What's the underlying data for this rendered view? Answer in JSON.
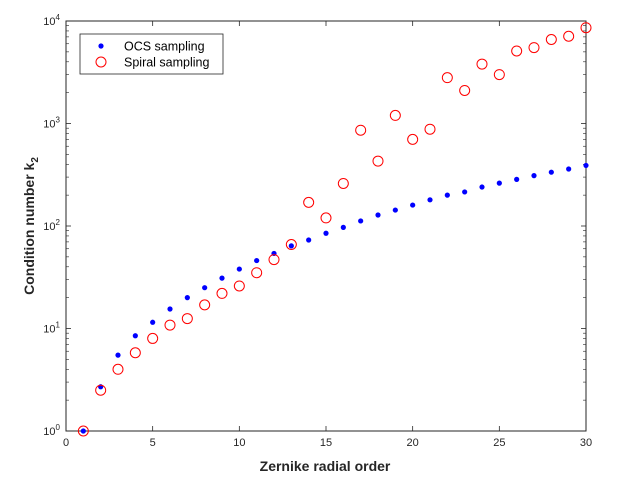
{
  "chart_data": {
    "type": "scatter",
    "xlabel": "Zernike radial order",
    "ylabel": "Condition number k",
    "ylabel_subscript": "2",
    "xlim": [
      0,
      30
    ],
    "ylim": [
      1,
      10000
    ],
    "yscale": "log",
    "xticks": [
      0,
      5,
      10,
      15,
      20,
      25,
      30
    ],
    "yticks": [
      {
        "value": 1,
        "base": "10",
        "exp": "0"
      },
      {
        "value": 10,
        "base": "10",
        "exp": "1"
      },
      {
        "value": 100,
        "base": "10",
        "exp": "2"
      },
      {
        "value": 1000,
        "base": "10",
        "exp": "3"
      },
      {
        "value": 10000,
        "base": "10",
        "exp": "4"
      }
    ],
    "grid": false,
    "legend_position": "top-left",
    "series": [
      {
        "name": "OCS sampling",
        "marker": "dot",
        "color": "#0000ff",
        "x": [
          1,
          2,
          3,
          4,
          5,
          6,
          7,
          8,
          9,
          10,
          11,
          12,
          13,
          14,
          15,
          16,
          17,
          18,
          19,
          20,
          21,
          22,
          23,
          24,
          25,
          26,
          27,
          28,
          29,
          30
        ],
        "y": [
          1.0,
          2.7,
          5.5,
          8.5,
          11.5,
          15.5,
          20,
          25,
          31,
          38,
          46,
          54,
          64,
          73,
          85,
          97,
          112,
          128,
          143,
          160,
          180,
          200,
          215,
          240,
          262,
          285,
          310,
          335,
          360,
          390
        ]
      },
      {
        "name": "Spiral sampling",
        "marker": "circle",
        "color": "#ff0000",
        "x": [
          1,
          2,
          3,
          4,
          5,
          6,
          7,
          8,
          9,
          10,
          11,
          12,
          13,
          14,
          15,
          16,
          17,
          18,
          19,
          20,
          21,
          22,
          23,
          24,
          25,
          26,
          27,
          28,
          29,
          30
        ],
        "y": [
          1.0,
          2.5,
          4.0,
          5.8,
          8.0,
          10.8,
          12.5,
          17,
          22,
          26,
          35,
          47,
          66,
          170,
          120,
          260,
          860,
          430,
          1200,
          700,
          880,
          2800,
          2100,
          3800,
          3000,
          5100,
          5500,
          6600,
          7100,
          8600
        ]
      }
    ]
  }
}
